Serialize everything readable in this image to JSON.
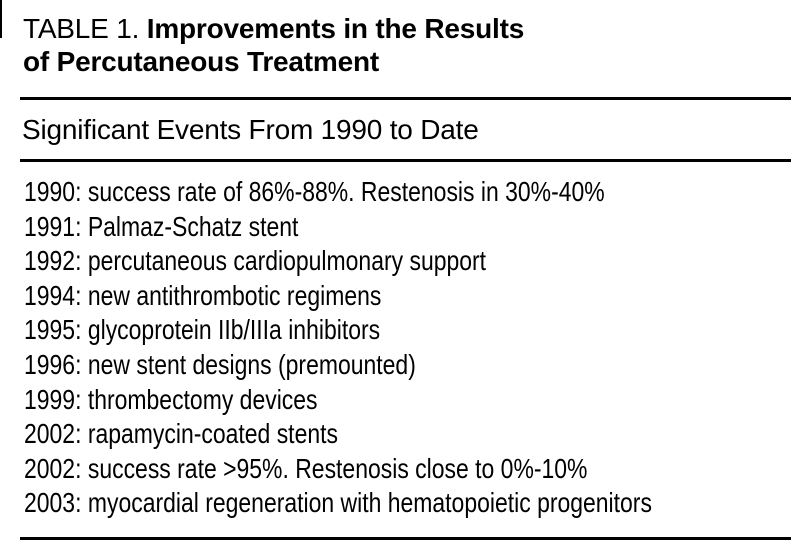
{
  "document": {
    "colors": {
      "background": "#ffffff",
      "text": "#000000",
      "rule": "#000000"
    },
    "table_label": "TABLE 1.",
    "title_line1": "Improvements in the Results",
    "title_line2": "of Percutaneous Treatment",
    "subtitle": "Significant Events From 1990 to Date",
    "events": [
      "1990: success rate of 86%-88%. Restenosis in 30%-40%",
      "1991: Palmaz-Schatz stent",
      "1992: percutaneous cardiopulmonary support",
      "1994: new antithrombotic regimens",
      "1995: glycoprotein IIb/IIIa inhibitors",
      "1996: new stent designs (premounted)",
      "1999: thrombectomy devices",
      "2002: rapamycin-coated stents",
      "2002: success rate >95%. Restenosis close to 0%-10%",
      "2003: myocardial regeneration with hematopoietic progenitors"
    ]
  }
}
